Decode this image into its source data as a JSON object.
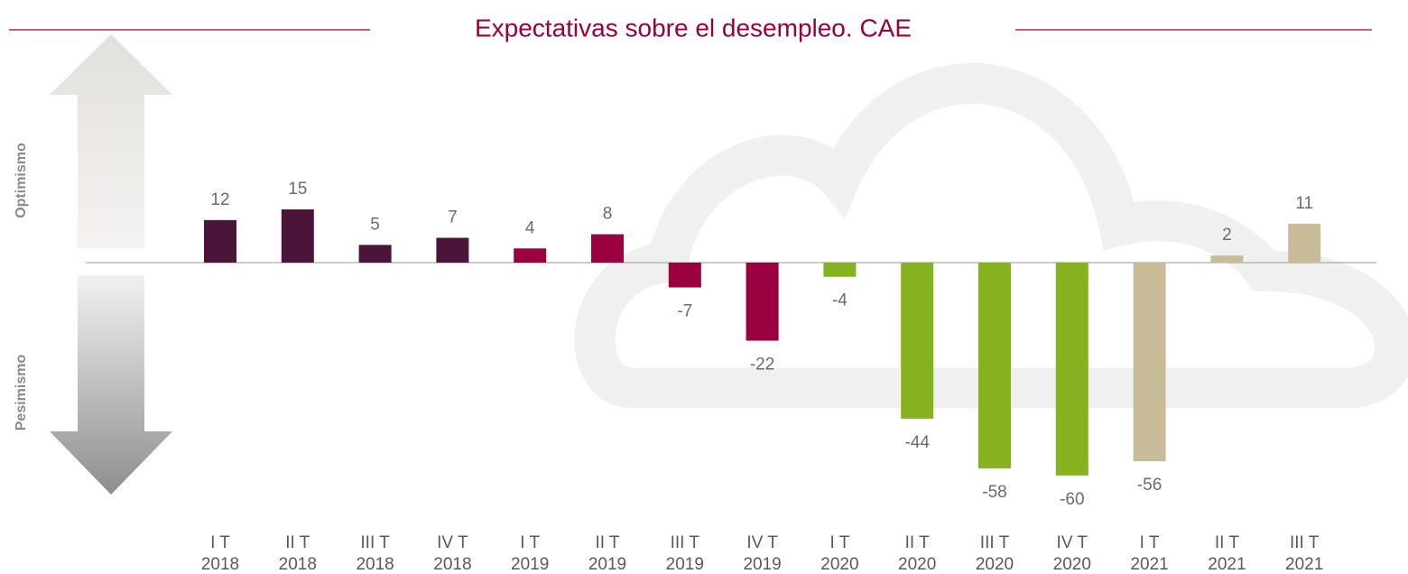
{
  "chart_data": {
    "type": "bar",
    "title": "Expectativas sobre el desempleo. CAE",
    "annotations": [
      "Optimismo",
      "Pesimismo"
    ],
    "categories": [
      [
        "I T",
        "2018"
      ],
      [
        "II T",
        "2018"
      ],
      [
        "III T",
        "2018"
      ],
      [
        "IV T",
        "2018"
      ],
      [
        "I T",
        "2019"
      ],
      [
        "II T",
        "2019"
      ],
      [
        "III T",
        "2019"
      ],
      [
        "IV T",
        "2019"
      ],
      [
        "I T",
        "2020"
      ],
      [
        "II T",
        "2020"
      ],
      [
        "III T",
        "2020"
      ],
      [
        "IV T",
        "2020"
      ],
      [
        "I T",
        "2021"
      ],
      [
        "II T",
        "2021"
      ],
      [
        "III T",
        "2021"
      ]
    ],
    "values": [
      12,
      15,
      5,
      7,
      4,
      8,
      -7,
      -22,
      -4,
      -44,
      -58,
      -60,
      -56,
      2,
      11
    ],
    "colors": [
      "#4a1538",
      "#4a1538",
      "#4a1538",
      "#4a1538",
      "#9b0040",
      "#9b0040",
      "#9b0040",
      "#9b0040",
      "#86b220",
      "#86b220",
      "#86b220",
      "#86b220",
      "#c8bc98",
      "#c8bc98",
      "#c8bc98"
    ]
  }
}
